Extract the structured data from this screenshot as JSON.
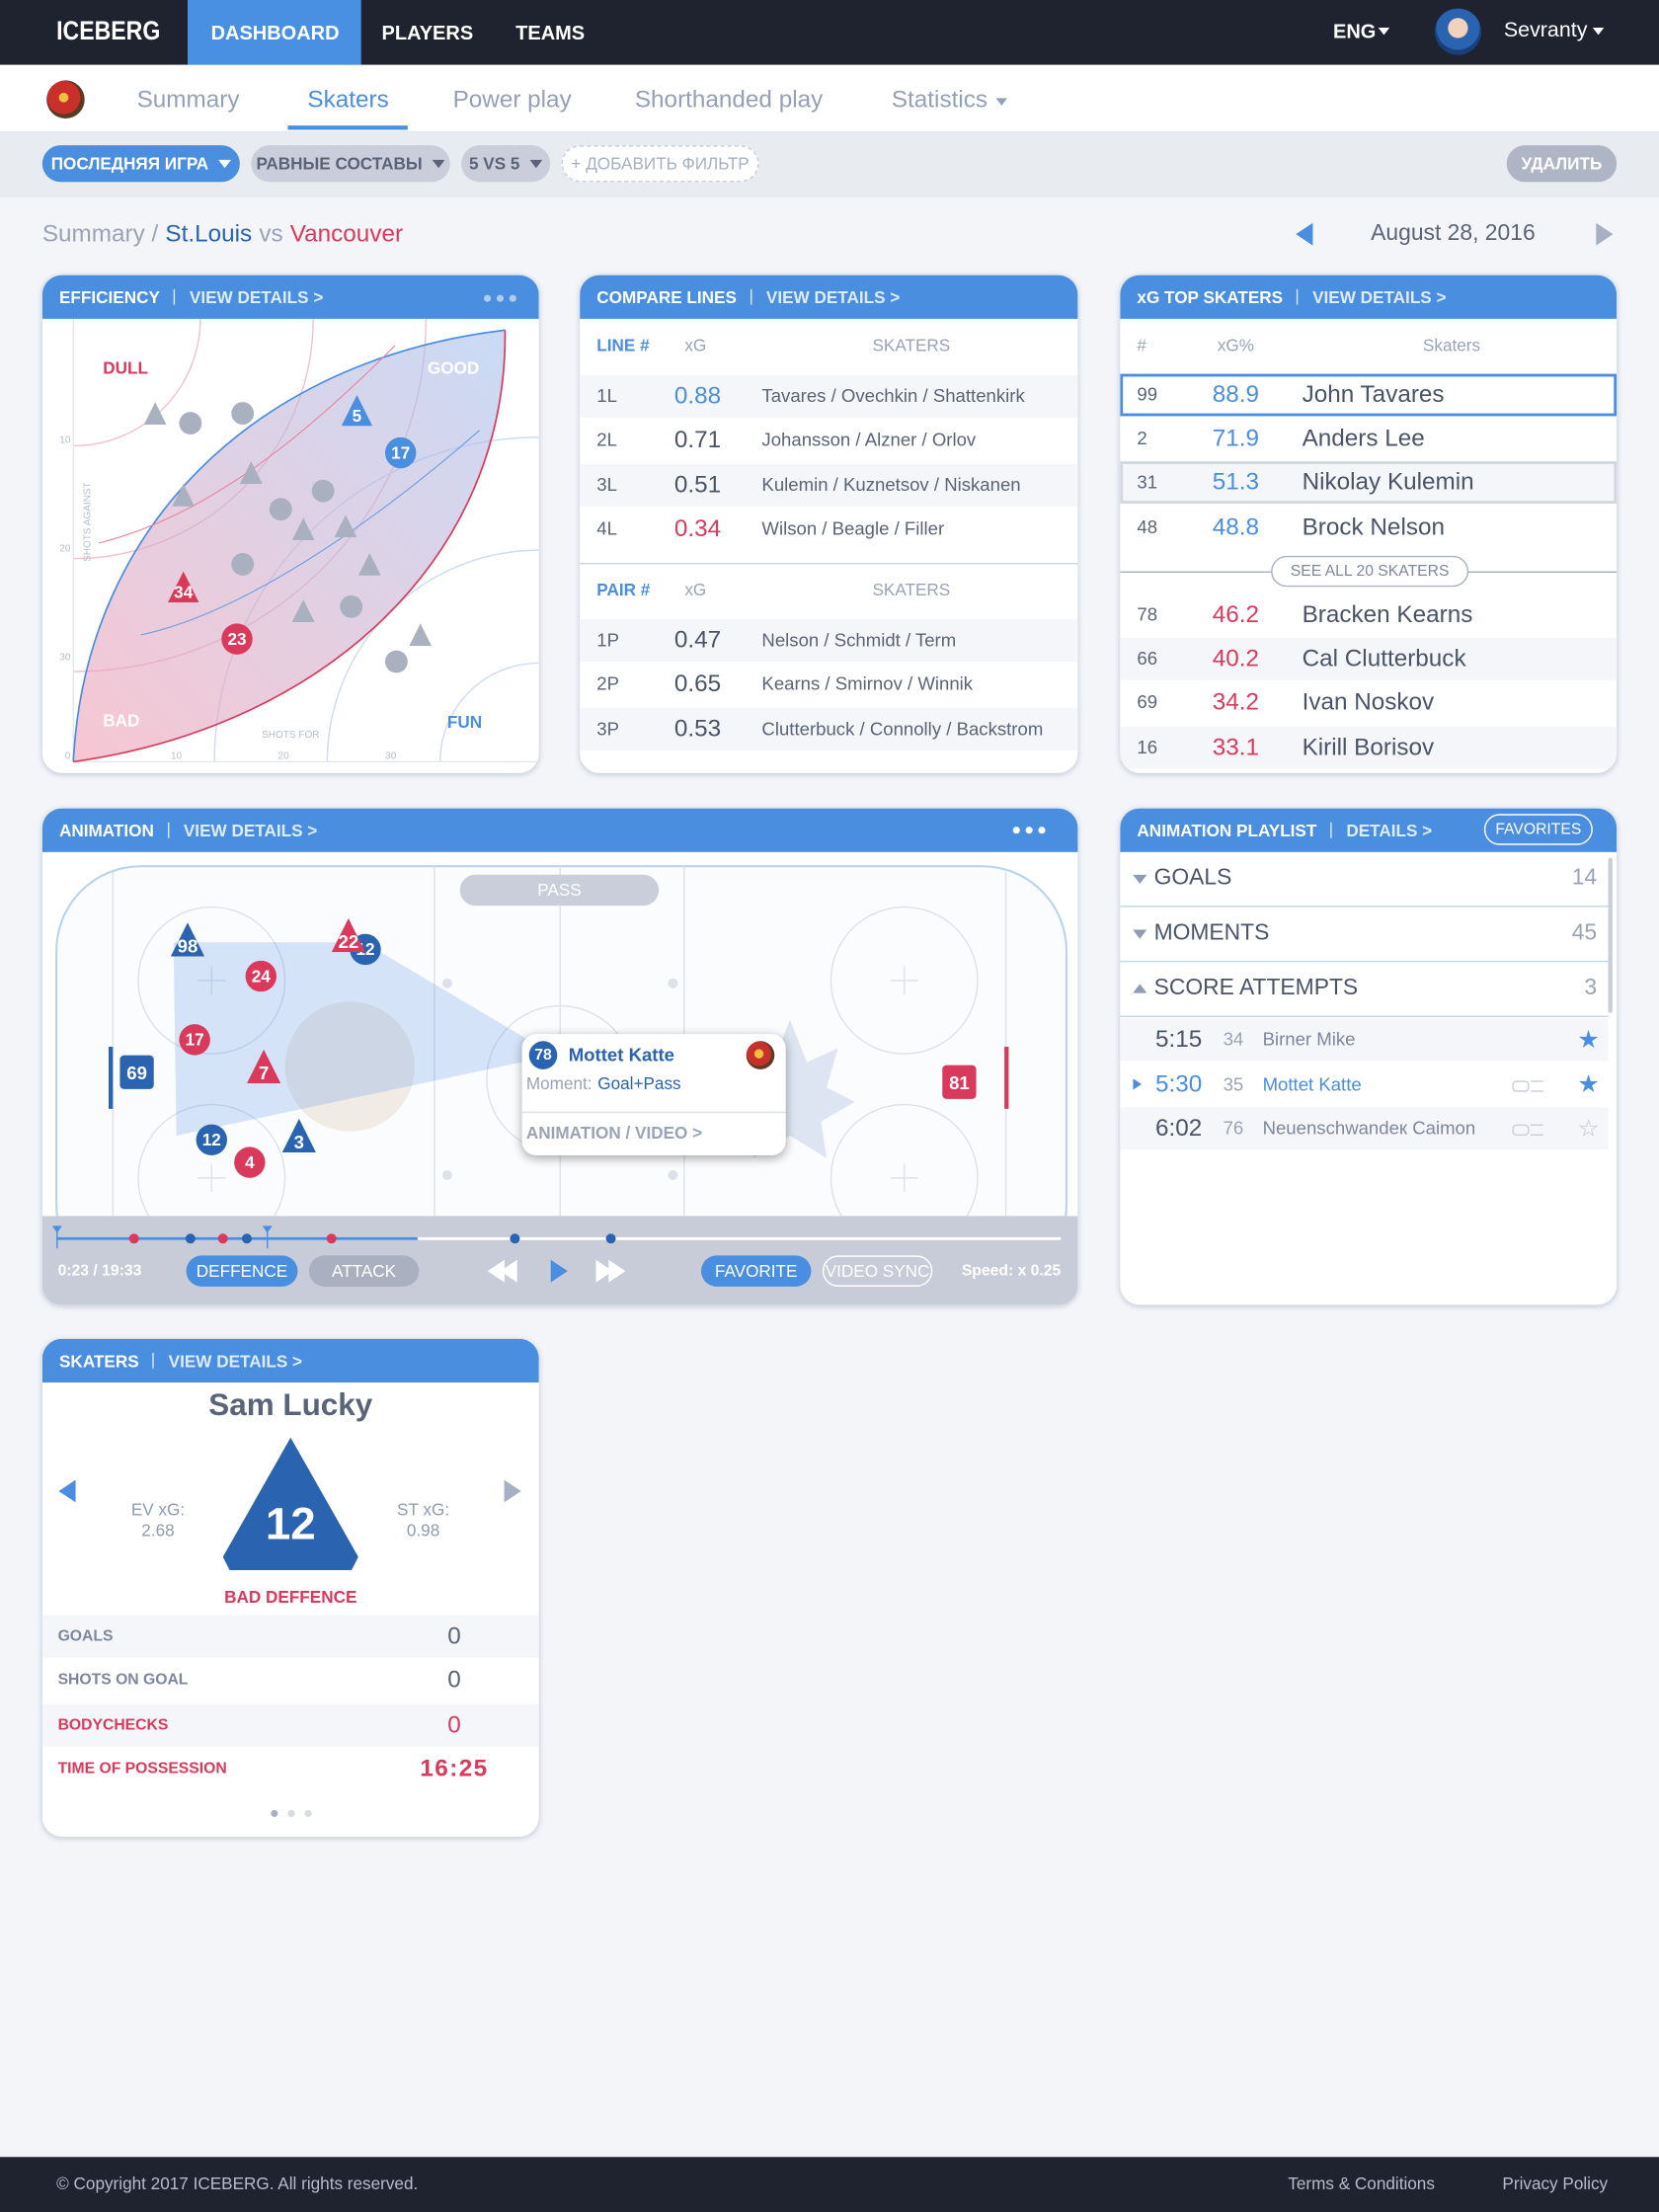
{
  "nav": {
    "brand": "ICEBERG",
    "items": [
      "DASHBOARD",
      "PLAYERS",
      "TEAMS"
    ],
    "language": "ENG",
    "user": "Sevranty"
  },
  "tabs": {
    "items": [
      "Summary",
      "Skaters",
      "Power play",
      "Shorthanded play",
      "Statistics"
    ],
    "active": 1
  },
  "filters": {
    "items": [
      "ПОСЛЕДНЯЯ ИГРА",
      "РАВНЫЕ СОСТАВЫ",
      "5 VS 5"
    ],
    "add": "+ ДОБАВИТЬ ФИЛЬТР",
    "delete": "УДАЛИТЬ"
  },
  "breadcrumb": {
    "section": "Summary /",
    "home": "St.Louis",
    "versus": "vs",
    "away": "Vancouver",
    "date": "August 28, 2016"
  },
  "efficiency": {
    "title": "EFFICIENCY",
    "link": "VIEW DETAILS >",
    "zones": {
      "dull": "DULL",
      "good": "GOOD",
      "bad": "BAD",
      "fun": "FUN"
    },
    "y_label": "SHOTS AGAINST",
    "x_label": "SHOTS FOR",
    "yticks": [
      10,
      20,
      30
    ],
    "xticks": [
      0,
      10,
      20,
      30
    ],
    "markers": [
      {
        "label": "5",
        "shape": "triangle",
        "color": "#4a8ee0"
      },
      {
        "label": "17",
        "shape": "circle",
        "color": "#4a8ee0"
      },
      {
        "label": "34",
        "shape": "triangle",
        "color": "#d93a5c"
      },
      {
        "label": "23",
        "shape": "circle",
        "color": "#d93a5c"
      }
    ]
  },
  "compare_lines": {
    "title": "COMPARE LINES",
    "link": "VIEW DETAILS >",
    "lines": {
      "columns": [
        "LINE #",
        "xG",
        "SKATERS"
      ],
      "rows": [
        {
          "id": "1L",
          "xg": "0.88",
          "skaters": "Tavares / Ovechkin / Shattenkirk",
          "color": "#4a8ee0"
        },
        {
          "id": "2L",
          "xg": "0.71",
          "skaters": "Johansson / Alzner / Orlov",
          "color": "#4a5468"
        },
        {
          "id": "3L",
          "xg": "0.51",
          "skaters": "Kulemin / Kuznetsov / Niskanen",
          "color": "#4a5468"
        },
        {
          "id": "4L",
          "xg": "0.34",
          "skaters": "Wilson / Beagle / Filler",
          "color": "#d93a5c"
        }
      ]
    },
    "pairs": {
      "columns": [
        "PAIR #",
        "xG",
        "SKATERS"
      ],
      "rows": [
        {
          "id": "1P",
          "xg": "0.47",
          "skaters": "Nelson / Schmidt / Term",
          "color": "#4a5468"
        },
        {
          "id": "2P",
          "xg": "0.65",
          "skaters": "Kearns / Smirnov / Winnik",
          "color": "#4a5468"
        },
        {
          "id": "3P",
          "xg": "0.53",
          "skaters": "Clutterbuck / Connolly / Backstrom",
          "color": "#4a5468"
        }
      ]
    }
  },
  "xg_top": {
    "title": "xG TOP SKATERS",
    "link": "VIEW DETAILS >",
    "columns": [
      "#",
      "xG%",
      "Skaters"
    ],
    "top": [
      {
        "num": "99",
        "xg": "88.9",
        "name": "John Tavares",
        "color": "#4a8ee0"
      },
      {
        "num": "2",
        "xg": "71.9",
        "name": "Anders Lee",
        "color": "#4a8ee0"
      },
      {
        "num": "31",
        "xg": "51.3",
        "name": "Nikolay Kulemin",
        "color": "#4a8ee0"
      },
      {
        "num": "48",
        "xg": "48.8",
        "name": "Brock Nelson",
        "color": "#4a8ee0"
      }
    ],
    "see_all": "SEE ALL 20 SKATERS",
    "bottom": [
      {
        "num": "78",
        "xg": "46.2",
        "name": "Bracken Kearns",
        "color": "#d93a5c"
      },
      {
        "num": "66",
        "xg": "40.2",
        "name": "Cal Clutterbuck",
        "color": "#d93a5c"
      },
      {
        "num": "69",
        "xg": "34.2",
        "name": "Ivan Noskov",
        "color": "#d93a5c"
      },
      {
        "num": "16",
        "xg": "33.1",
        "name": "Kirill Borisov",
        "color": "#d93a5c"
      }
    ]
  },
  "animation": {
    "title": "ANIMATION",
    "link": "VIEW DETAILS >",
    "pass": "PASS",
    "players": [
      {
        "label": "98",
        "shape": "triangle",
        "color": "#2a63b0"
      },
      {
        "label": "12",
        "shape": "circle",
        "color": "#2a63b0"
      },
      {
        "label": "22",
        "shape": "triangle",
        "color": "#d93a5c"
      },
      {
        "label": "24",
        "shape": "circle",
        "color": "#d93a5c"
      },
      {
        "label": "17",
        "shape": "circle",
        "color": "#d93a5c"
      },
      {
        "label": "7",
        "shape": "triangle",
        "color": "#d93a5c"
      },
      {
        "label": "69",
        "shape": "square",
        "color": "#2a63b0"
      },
      {
        "label": "12",
        "shape": "circle",
        "color": "#2a63b0"
      },
      {
        "label": "3",
        "shape": "triangle",
        "color": "#2a63b0"
      },
      {
        "label": "4",
        "shape": "circle",
        "color": "#d93a5c"
      },
      {
        "label": "81",
        "shape": "square",
        "color": "#d93a5c"
      }
    ],
    "tooltip": {
      "number": "78",
      "name": "Mottet Katte",
      "moment_label": "Moment:",
      "moment": "Goal+Pass",
      "link": "ANIMATION / VIDEO >"
    },
    "controls": {
      "time": "0:23 / 19:33",
      "modes": [
        "DEFFENCE",
        "ATTACK"
      ],
      "favorite": "FAVORITE",
      "sync": "VIDEO SYNC",
      "speed": "Speed: x 0.25"
    }
  },
  "playlist": {
    "title": "ANIMATION PLAYLIST",
    "link": "DETAILS >",
    "favorites": "FAVORITES",
    "groups": [
      {
        "name": "GOALS",
        "count": 14
      },
      {
        "name": "MOMENTS",
        "count": 45
      },
      {
        "name": "SCORE ATTEMPTS",
        "count": 3
      }
    ],
    "items": [
      {
        "time": "5:15",
        "number": 34,
        "name": "Birner Mike",
        "favorite": true
      },
      {
        "time": "5:30",
        "number": 35,
        "name": "Mottet Katte",
        "favorite": true
      },
      {
        "time": "6:02",
        "number": 76,
        "name": "Neuenschwandeк Caimon",
        "favorite": false
      }
    ],
    "active_item": 1
  },
  "skater": {
    "title": "SKATERS",
    "link": "VIEW DETAILS >",
    "name": "Sam Lucky",
    "number": 12,
    "ev_label": "EV xG:",
    "ev": 2.68,
    "st_label": "ST xG:",
    "st": 0.98,
    "status": "BAD DEFFENCE",
    "stats": [
      {
        "label": "GOALS",
        "value": 0,
        "color": "#7d879b"
      },
      {
        "label": "SHOTS ON GOAL",
        "value": 0,
        "color": "#7d879b"
      },
      {
        "label": "BODYCHECKS",
        "value": 0,
        "color": "#d93a5c"
      },
      {
        "label": "TIME OF POSSESSION",
        "value": "16:25",
        "color": "#d93a5c"
      }
    ]
  },
  "footer": {
    "copyright": "© Copyright 2017 ICEBERG. All rights reserved.",
    "links": [
      "Terms & Conditions",
      "Privacy Policy"
    ]
  }
}
